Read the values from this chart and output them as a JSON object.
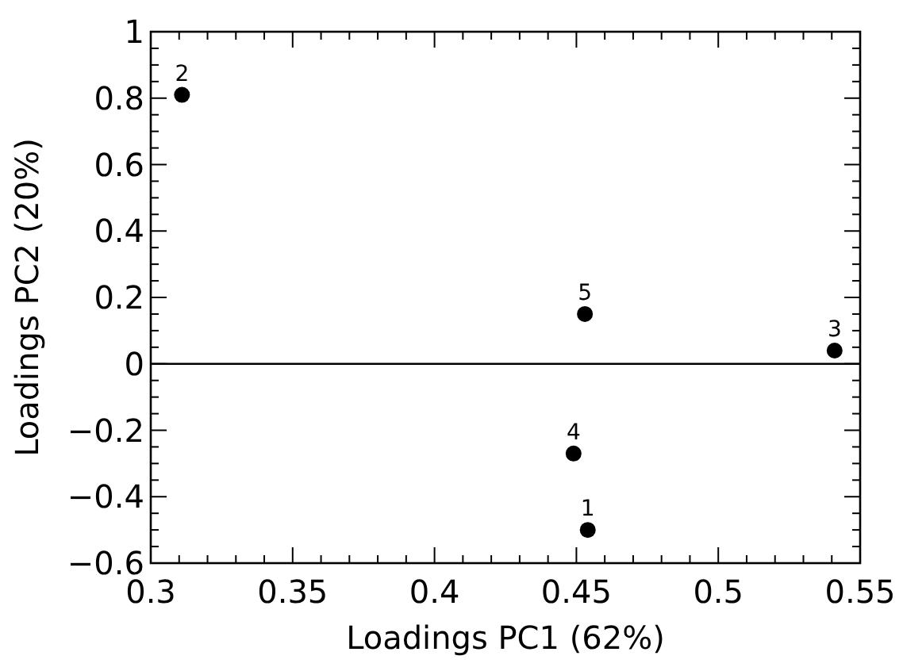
{
  "chart_data": {
    "type": "scatter",
    "xlabel": "Loadings PC1 (62%)",
    "ylabel": "Loadings PC2 (20%)",
    "x": [
      0.454,
      0.311,
      0.541,
      0.449,
      0.453
    ],
    "series": [
      {
        "color": "#000000",
        "values": [
          -0.5,
          0.81,
          0.04,
          -0.27,
          0.15
        ]
      }
    ],
    "marker": "circle",
    "grid": false,
    "xlim": [
      0.3,
      0.55
    ],
    "xticks": [
      0.3,
      0.35,
      0.4,
      0.45,
      0.5,
      0.55
    ],
    "ylim": [
      -0.6,
      1
    ],
    "yticks": [
      {
        "value": -0.6,
        "label": "−0.6"
      },
      {
        "value": -0.4,
        "label": "−0.4"
      },
      {
        "value": -0.2,
        "label": "−0.2"
      },
      0,
      0.2,
      0.4,
      0.6,
      0.8,
      1
    ],
    "ref_lines": [
      {
        "axis": "y",
        "value": 0,
        "color": "#000000"
      }
    ],
    "annotations": [
      {
        "text": "1",
        "x": 0.454,
        "y": -0.5
      },
      {
        "text": "2",
        "x": 0.311,
        "y": 0.81
      },
      {
        "text": "3",
        "x": 0.541,
        "y": 0.04
      },
      {
        "text": "4",
        "x": 0.449,
        "y": -0.27
      },
      {
        "text": "5",
        "x": 0.453,
        "y": 0.15
      }
    ]
  }
}
